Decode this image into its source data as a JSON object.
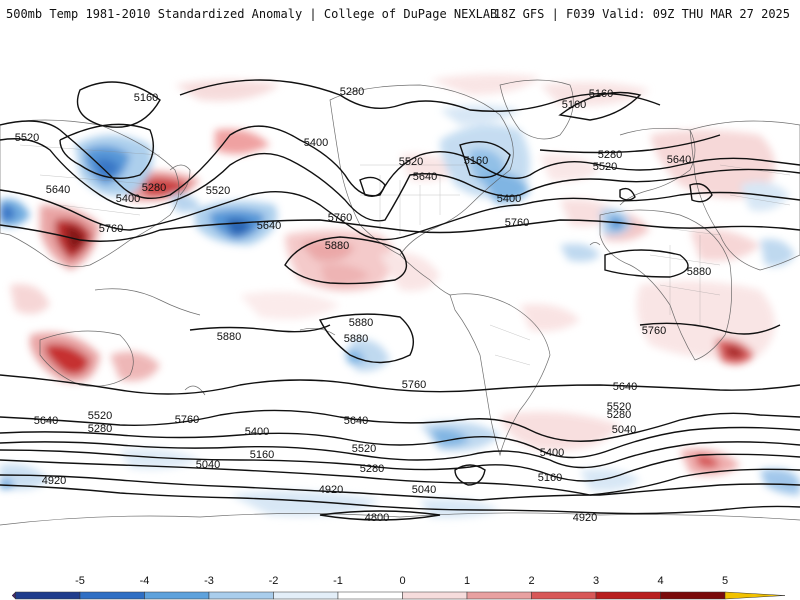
{
  "header": {
    "title": "500mb Temp 1981-2010 Standardized Anomaly | College of DuPage NEXLAB",
    "run_info": "18Z GFS | F039 Valid: 09Z THU MAR 27 2025"
  },
  "contour_labels": [
    "5160",
    "5280",
    "5400",
    "5520",
    "5640",
    "5760",
    "5880",
    "5040",
    "4920",
    "4800"
  ],
  "colorbar": {
    "ticks": [
      "-5",
      "-4",
      "-3",
      "-2",
      "-1",
      "0",
      "1",
      "2",
      "3",
      "4",
      "5"
    ],
    "colors": [
      "#4a2a6a",
      "#1f3c8c",
      "#2f6fc4",
      "#5ea2dc",
      "#a9cdec",
      "#e3eef8",
      "#ffffff",
      "#f6dcdc",
      "#e8a0a0",
      "#d85858",
      "#b81e1e",
      "#7a0a0a",
      "#f2c200"
    ]
  },
  "map_labels": {
    "l1": "5160",
    "l2": "5280",
    "l3": "5160",
    "l4": "5160",
    "l5": "5520",
    "l6": "5400",
    "l7": "5640",
    "l8": "5280",
    "l9": "5400",
    "l10": "5520",
    "l11": "5760",
    "l12": "5640",
    "l13": "5520",
    "l14": "5640",
    "l15": "5160",
    "l16": "5400",
    "l17": "5760",
    "l18": "5280",
    "l19": "5520",
    "l20": "5640",
    "l21": "5760",
    "l22": "5880",
    "l23": "5880",
    "l24": "5880",
    "l25": "5880",
    "l26": "5880",
    "l27": "5760",
    "l28": "5760",
    "l29": "5640",
    "l30": "5520",
    "l31": "5280",
    "l32": "5760",
    "l33": "5640",
    "l34": "5400",
    "l35": "5520",
    "l36": "5280",
    "l37": "5160",
    "l38": "5040",
    "l39": "4920",
    "l40": "4920",
    "l41": "5040",
    "l42": "4800",
    "l43": "4920",
    "l44": "5640",
    "l45": "5400",
    "l46": "5160",
    "l47": "5520",
    "l48": "5280",
    "l49": "5040"
  }
}
